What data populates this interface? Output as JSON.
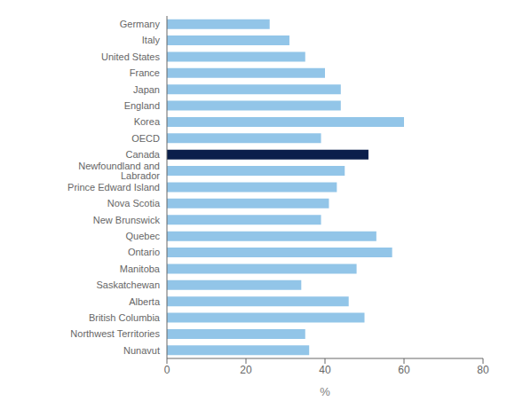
{
  "chart_data": {
    "type": "bar",
    "orientation": "horizontal",
    "categories": [
      "Nunavut",
      "Northwest Territories",
      "British Columbia",
      "Alberta",
      "Saskatchewan",
      "Manitoba",
      "Ontario",
      "Quebec",
      "New Brunswick",
      "Nova Scotia",
      "Prince Edward Island",
      "Newfoundland and Labrador",
      "Canada",
      "OECD",
      "Korea",
      "England",
      "Japan",
      "France",
      "United States",
      "Italy",
      "Germany"
    ],
    "values": [
      36,
      35,
      50,
      46,
      34,
      48,
      57,
      53,
      39,
      41,
      43,
      45,
      51,
      39,
      60,
      44,
      44,
      40,
      35,
      31,
      26
    ],
    "colors": [
      "#92C5E8",
      "#92C5E8",
      "#92C5E8",
      "#92C5E8",
      "#92C5E8",
      "#92C5E8",
      "#92C5E8",
      "#92C5E8",
      "#92C5E8",
      "#92C5E8",
      "#92C5E8",
      "#92C5E8",
      "#0B1F4B",
      "#92C5E8",
      "#92C5E8",
      "#92C5E8",
      "#92C5E8",
      "#92C5E8",
      "#92C5E8",
      "#92C5E8",
      "#92C5E8"
    ],
    "xlabel": "%",
    "xlim": [
      0,
      80
    ],
    "xticks": [
      0,
      20,
      40,
      60,
      80
    ],
    "grid": false
  }
}
